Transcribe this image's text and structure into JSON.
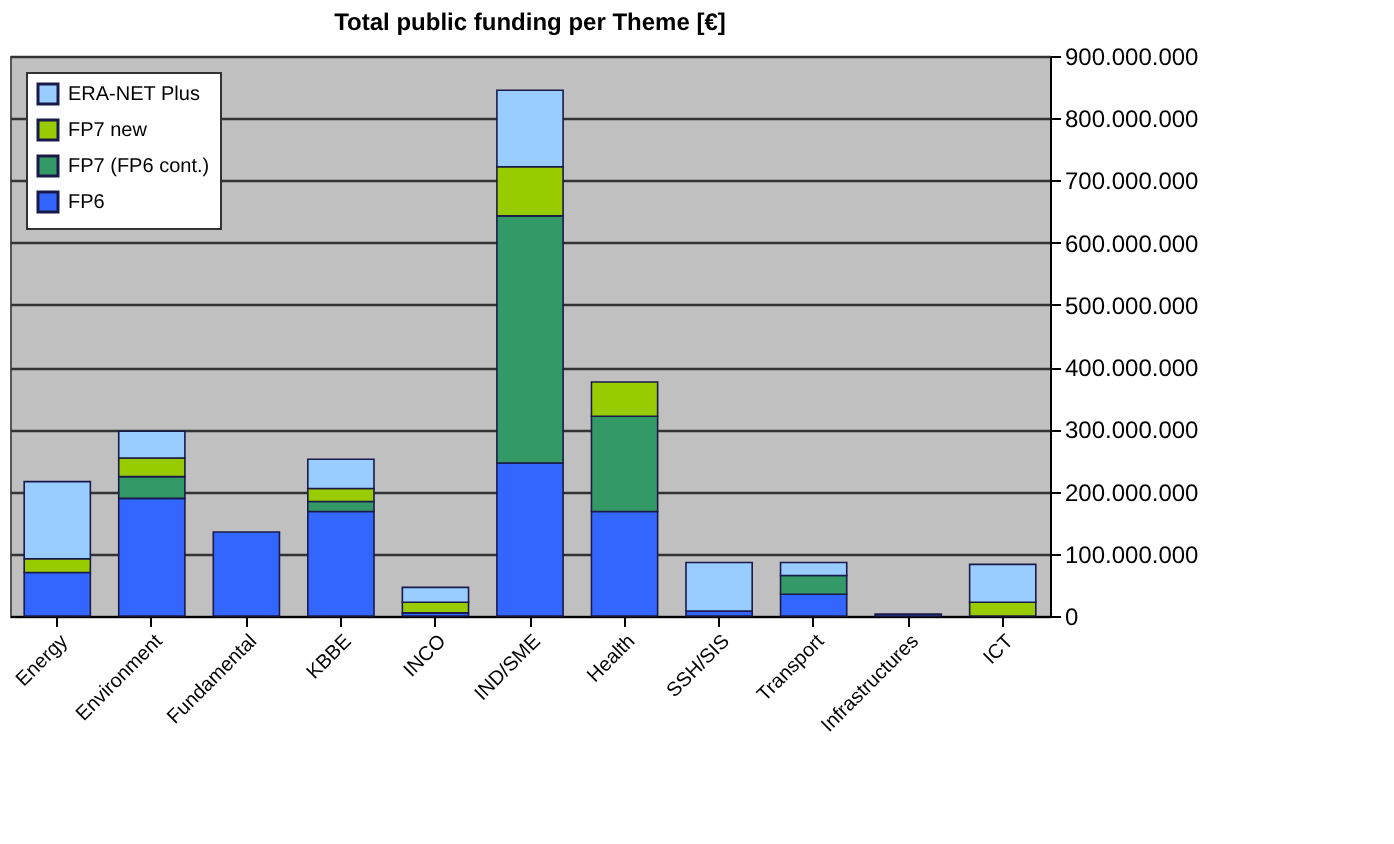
{
  "chart_data": {
    "type": "bar",
    "stacked": true,
    "title": "Total public funding per Theme [€]",
    "categories": [
      "Energy",
      "Environment",
      "Fundamental",
      "KBBE",
      "INCO",
      "IND/SME",
      "Health",
      "SSH/SIS",
      "Transport",
      "Infrastructures",
      "ICT"
    ],
    "series": [
      {
        "name": "FP6",
        "color": "#3366ff",
        "values": [
          70000000,
          189000000,
          135000000,
          168000000,
          5000000,
          246000000,
          168000000,
          8000000,
          35000000,
          3000000,
          0
        ]
      },
      {
        "name": "FP7 (FP6 cont.)",
        "color": "#339966",
        "values": [
          0,
          35000000,
          0,
          16000000,
          0,
          397000000,
          153000000,
          0,
          30000000,
          0,
          0
        ]
      },
      {
        "name": "FP7 new",
        "color": "#99cc00",
        "values": [
          22000000,
          30000000,
          0,
          21000000,
          17000000,
          79000000,
          55000000,
          0,
          0,
          0,
          22000000
        ]
      },
      {
        "name": "ERA-NET Plus",
        "color": "#99ccff",
        "values": [
          124000000,
          43000000,
          0,
          47000000,
          24000000,
          123000000,
          0,
          78000000,
          21000000,
          0,
          61000000
        ]
      }
    ],
    "ylim": [
      0,
      900000000
    ],
    "yticks": [
      0,
      {
        "value": 100000000,
        "label": "100.000.000"
      },
      {
        "value": 200000000,
        "label": "200.000.000"
      },
      {
        "value": 300000000,
        "label": "300.000.000"
      },
      {
        "value": 400000000,
        "label": "400.000.000"
      },
      {
        "value": 500000000,
        "label": "500.000.000"
      },
      {
        "value": 600000000,
        "label": "600.000.000"
      },
      {
        "value": 700000000,
        "label": "700.000.000"
      },
      {
        "value": 800000000,
        "label": "800.000.000"
      },
      {
        "value": 900000000,
        "label": "900.000.000"
      }
    ],
    "grid": "y",
    "legend": "top left"
  }
}
